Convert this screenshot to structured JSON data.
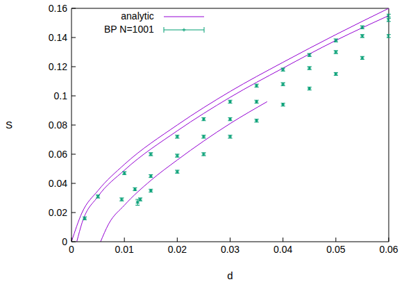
{
  "chart_data": {
    "type": "line",
    "x_label": "d",
    "y_label": "S",
    "xlim": [
      0,
      0.06
    ],
    "ylim": [
      0,
      0.16
    ],
    "xticks": [
      0,
      0.01,
      0.02,
      0.03,
      0.04,
      0.05,
      0.06
    ],
    "yticks": [
      0,
      0.02,
      0.04,
      0.06,
      0.08,
      0.1,
      0.12,
      0.14,
      0.16
    ],
    "legend": "upper left",
    "series": [
      {
        "name": "analytic",
        "type": "line",
        "color": "#9400d3",
        "x": [
          0,
          0.002,
          0.005,
          0.01,
          0.02,
          0.03,
          0.04,
          0.05,
          0.06
        ],
        "values": [
          0,
          0.02,
          0.035,
          0.053,
          0.08,
          0.103,
          0.123,
          0.142,
          0.16
        ]
      },
      {
        "name": "analytic",
        "type": "line",
        "color": "#9400d3",
        "x": [
          0.001,
          0.002,
          0.005,
          0.01,
          0.02,
          0.03,
          0.04,
          0.05,
          0.06
        ],
        "values": [
          0,
          0.013,
          0.031,
          0.049,
          0.076,
          0.099,
          0.119,
          0.138,
          0.155
        ]
      },
      {
        "name": "analytic",
        "type": "line",
        "color": "#9400d3",
        "x": [
          0.0055,
          0.007,
          0.01,
          0.015,
          0.02,
          0.025,
          0.03,
          0.037
        ],
        "values": [
          0,
          0.012,
          0.025,
          0.042,
          0.056,
          0.069,
          0.081,
          0.096
        ]
      },
      {
        "name": "BP N=1001",
        "type": "scatter",
        "color": "#009e73",
        "x": [
          0.0025,
          0.005,
          0.01,
          0.015,
          0.02,
          0.025,
          0.03,
          0.035,
          0.04,
          0.045,
          0.05,
          0.055,
          0.06
        ],
        "values": [
          0.016,
          0.031,
          0.047,
          0.06,
          0.072,
          0.084,
          0.096,
          0.107,
          0.118,
          0.128,
          0.138,
          0.147,
          0.155
        ],
        "errors": [
          0.001,
          0.001,
          0.001,
          0.001,
          0.001,
          0.001,
          0.001,
          0.001,
          0.001,
          0.001,
          0.001,
          0.001,
          0.001
        ]
      },
      {
        "name": "BP N=1001",
        "type": "scatter",
        "color": "#009e73",
        "x": [
          0.0095,
          0.012,
          0.015,
          0.02,
          0.025,
          0.03,
          0.035,
          0.04,
          0.045,
          0.05,
          0.055,
          0.06
        ],
        "values": [
          0.029,
          0.036,
          0.045,
          0.059,
          0.072,
          0.084,
          0.096,
          0.108,
          0.119,
          0.13,
          0.141,
          0.152
        ],
        "errors": [
          0.001,
          0.001,
          0.001,
          0.001,
          0.001,
          0.001,
          0.001,
          0.001,
          0.001,
          0.001,
          0.001,
          0.001
        ]
      },
      {
        "name": "BP N=1001",
        "type": "scatter",
        "color": "#009e73",
        "x": [
          0.0125,
          0.013,
          0.015,
          0.02,
          0.025,
          0.03,
          0.035,
          0.04,
          0.045,
          0.05,
          0.055,
          0.06
        ],
        "values": [
          0.027,
          0.029,
          0.035,
          0.048,
          0.06,
          0.072,
          0.083,
          0.094,
          0.105,
          0.115,
          0.126,
          0.141
        ],
        "errors": [
          0.002,
          0.001,
          0.001,
          0.001,
          0.001,
          0.001,
          0.001,
          0.001,
          0.001,
          0.001,
          0.001,
          0.001
        ]
      }
    ]
  }
}
